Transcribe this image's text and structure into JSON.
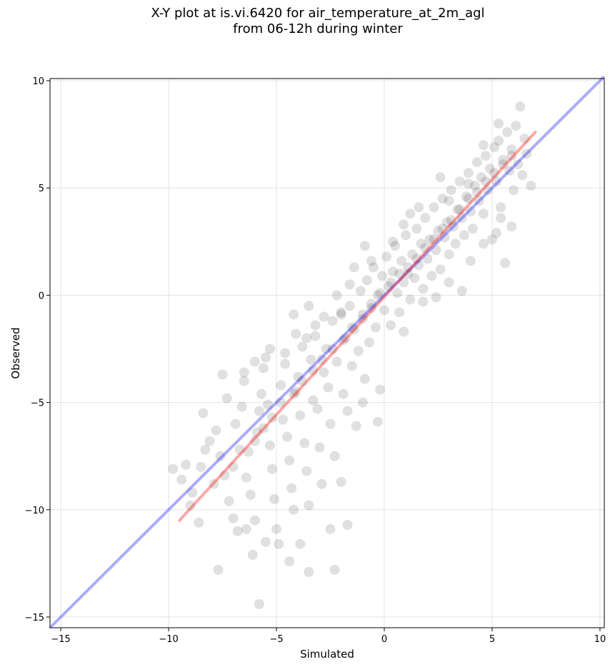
{
  "chart_data": {
    "type": "scatter",
    "title": "X-Y plot at is.vi.6420 for air_temperature_at_2m_agl\nfrom 06-12h during winter",
    "xlabel": "Simulated",
    "ylabel": "Observed",
    "xlim": [
      -15.5,
      10.2
    ],
    "ylim": [
      -15.5,
      10.1
    ],
    "xticks": [
      -15,
      -10,
      -5,
      0,
      5,
      10
    ],
    "yticks": [
      -15,
      -10,
      -5,
      0,
      5,
      10
    ],
    "xtick_labels": [
      "−15",
      "−10",
      "−5",
      "0",
      "5",
      "10"
    ],
    "ytick_labels": [
      "−15",
      "−10",
      "−5",
      "0",
      "5",
      "10"
    ],
    "grid": true,
    "colors": {
      "points": "#000000",
      "identity": "#0000ff",
      "fit": "#ff0000"
    },
    "identity_line": {
      "x": [
        -15.5,
        10.2
      ],
      "y": [
        -15.5,
        10.2
      ]
    },
    "fit_line": {
      "x": [
        -9.5,
        7.0
      ],
      "y": [
        -10.5,
        7.6
      ]
    },
    "points": [
      [
        -9.8,
        -8.1
      ],
      [
        -9.4,
        -8.6
      ],
      [
        -9.2,
        -7.9
      ],
      [
        -8.9,
        -9.2
      ],
      [
        -8.5,
        -8.0
      ],
      [
        -8.3,
        -7.2
      ],
      [
        -8.1,
        -6.8
      ],
      [
        -8.4,
        -5.5
      ],
      [
        -7.8,
        -6.3
      ],
      [
        -7.6,
        -7.5
      ],
      [
        -7.5,
        -3.7
      ],
      [
        -7.3,
        -4.8
      ],
      [
        -7.4,
        -8.4
      ],
      [
        -7.2,
        -9.6
      ],
      [
        -7.0,
        -10.4
      ],
      [
        -6.8,
        -11.0
      ],
      [
        -6.9,
        -6.0
      ],
      [
        -6.6,
        -5.2
      ],
      [
        -6.5,
        -4.0
      ],
      [
        -6.3,
        -7.3
      ],
      [
        -6.4,
        -8.5
      ],
      [
        -6.2,
        -9.3
      ],
      [
        -6.0,
        -10.5
      ],
      [
        -6.1,
        -12.1
      ],
      [
        -5.9,
        -6.4
      ],
      [
        -5.8,
        -5.4
      ],
      [
        -5.7,
        -4.6
      ],
      [
        -5.6,
        -3.4
      ],
      [
        -5.5,
        -2.9
      ],
      [
        -5.4,
        -5.1
      ],
      [
        -5.3,
        -7.0
      ],
      [
        -5.2,
        -8.1
      ],
      [
        -5.1,
        -9.5
      ],
      [
        -5.0,
        -10.9
      ],
      [
        -4.9,
        -11.6
      ],
      [
        -4.8,
        -4.2
      ],
      [
        -4.7,
        -5.8
      ],
      [
        -4.6,
        -3.2
      ],
      [
        -4.5,
        -6.6
      ],
      [
        -4.4,
        -7.7
      ],
      [
        -4.3,
        -9.0
      ],
      [
        -4.2,
        -10.0
      ],
      [
        -4.1,
        -4.5
      ],
      [
        -4.0,
        -3.8
      ],
      [
        -3.9,
        -5.6
      ],
      [
        -3.8,
        -2.4
      ],
      [
        -3.7,
        -6.9
      ],
      [
        -3.6,
        -8.2
      ],
      [
        -3.5,
        -9.8
      ],
      [
        -3.4,
        -3.0
      ],
      [
        -3.3,
        -4.9
      ],
      [
        -3.2,
        -1.9
      ],
      [
        -3.1,
        -5.3
      ],
      [
        -3.0,
        -7.1
      ],
      [
        -2.9,
        -8.8
      ],
      [
        -2.8,
        -3.6
      ],
      [
        -2.7,
        -2.5
      ],
      [
        -2.6,
        -4.3
      ],
      [
        -2.5,
        -6.0
      ],
      [
        -2.4,
        -1.2
      ],
      [
        -2.3,
        -7.5
      ],
      [
        -2.2,
        -3.1
      ],
      [
        -2.0,
        -0.9
      ],
      [
        -1.9,
        -4.6
      ],
      [
        -1.8,
        -2.0
      ],
      [
        -1.7,
        -5.4
      ],
      [
        -1.6,
        -0.5
      ],
      [
        -1.5,
        -3.3
      ],
      [
        -1.4,
        -1.6
      ],
      [
        -1.3,
        -6.1
      ],
      [
        -1.2,
        -2.6
      ],
      [
        -1.1,
        0.2
      ],
      [
        -1.0,
        -1.1
      ],
      [
        -0.9,
        -3.9
      ],
      [
        -0.8,
        0.7
      ],
      [
        -0.7,
        -2.2
      ],
      [
        -0.6,
        -0.4
      ],
      [
        -0.5,
        1.3
      ],
      [
        -0.4,
        -1.5
      ],
      [
        -0.3,
        0.0
      ],
      [
        -0.2,
        -4.4
      ],
      [
        -0.1,
        0.9
      ],
      [
        0.0,
        -0.7
      ],
      [
        0.1,
        1.8
      ],
      [
        0.2,
        0.4
      ],
      [
        0.3,
        -1.4
      ],
      [
        0.4,
        1.1
      ],
      [
        0.5,
        2.3
      ],
      [
        0.6,
        0.1
      ],
      [
        0.7,
        -0.8
      ],
      [
        0.8,
        1.6
      ],
      [
        0.9,
        0.6
      ],
      [
        1.0,
        2.8
      ],
      [
        1.1,
        1.0
      ],
      [
        1.2,
        -0.2
      ],
      [
        1.3,
        1.9
      ],
      [
        1.4,
        0.8
      ],
      [
        1.5,
        3.1
      ],
      [
        1.6,
        1.4
      ],
      [
        1.7,
        2.4
      ],
      [
        1.8,
        0.3
      ],
      [
        1.9,
        3.6
      ],
      [
        2.0,
        1.7
      ],
      [
        2.1,
        2.6
      ],
      [
        2.2,
        0.9
      ],
      [
        2.3,
        4.1
      ],
      [
        2.4,
        2.1
      ],
      [
        2.5,
        3.0
      ],
      [
        2.6,
        1.2
      ],
      [
        2.7,
        4.5
      ],
      [
        2.8,
        2.7
      ],
      [
        2.9,
        3.4
      ],
      [
        3.0,
        1.9
      ],
      [
        3.1,
        4.9
      ],
      [
        3.2,
        3.2
      ],
      [
        3.3,
        2.4
      ],
      [
        3.4,
        4.0
      ],
      [
        3.5,
        5.3
      ],
      [
        3.6,
        3.6
      ],
      [
        3.7,
        2.8
      ],
      [
        3.8,
        4.6
      ],
      [
        3.9,
        5.7
      ],
      [
        4.0,
        3.9
      ],
      [
        4.1,
        3.1
      ],
      [
        4.2,
        5.1
      ],
      [
        4.3,
        6.2
      ],
      [
        4.4,
        4.4
      ],
      [
        4.5,
        5.5
      ],
      [
        4.6,
        3.8
      ],
      [
        4.7,
        6.5
      ],
      [
        4.8,
        4.9
      ],
      [
        4.9,
        5.9
      ],
      [
        5.0,
        2.6
      ],
      [
        5.1,
        6.9
      ],
      [
        5.2,
        5.3
      ],
      [
        5.3,
        7.2
      ],
      [
        5.4,
        4.1
      ],
      [
        5.5,
        6.3
      ],
      [
        5.6,
        1.5
      ],
      [
        5.7,
        7.6
      ],
      [
        5.8,
        5.8
      ],
      [
        5.9,
        6.8
      ],
      [
        6.0,
        4.9
      ],
      [
        6.1,
        7.9
      ],
      [
        6.2,
        6.1
      ],
      [
        6.3,
        8.8
      ],
      [
        6.4,
        5.6
      ],
      [
        6.5,
        7.3
      ],
      [
        6.6,
        6.6
      ],
      [
        6.8,
        5.1
      ],
      [
        5.3,
        8.0
      ],
      [
        5.9,
        3.2
      ],
      [
        -9.0,
        -9.8
      ],
      [
        -8.6,
        -10.6
      ],
      [
        -7.7,
        -12.8
      ],
      [
        -5.8,
        -14.4
      ],
      [
        -3.5,
        -12.9
      ],
      [
        -2.3,
        -12.8
      ],
      [
        -1.7,
        -10.7
      ],
      [
        -2.5,
        -10.9
      ],
      [
        -3.9,
        -11.6
      ],
      [
        -4.4,
        -12.4
      ],
      [
        -5.5,
        -11.5
      ],
      [
        -6.4,
        -10.9
      ],
      [
        -2.0,
        -8.7
      ],
      [
        -1.0,
        -5.0
      ],
      [
        -0.3,
        -5.9
      ],
      [
        0.9,
        -1.7
      ],
      [
        -4.2,
        -0.9
      ],
      [
        -3.2,
        -1.4
      ],
      [
        -3.5,
        -0.5
      ],
      [
        -2.2,
        0.0
      ],
      [
        -1.6,
        0.5
      ],
      [
        -1.4,
        1.3
      ],
      [
        -0.6,
        1.6
      ],
      [
        -0.9,
        2.3
      ],
      [
        0.4,
        2.5
      ],
      [
        0.9,
        3.3
      ],
      [
        1.2,
        3.8
      ],
      [
        1.6,
        4.1
      ],
      [
        2.6,
        5.5
      ],
      [
        3.0,
        4.4
      ],
      [
        3.9,
        5.2
      ],
      [
        4.6,
        7.0
      ],
      [
        1.8,
        -0.3
      ],
      [
        2.4,
        -0.1
      ],
      [
        3.0,
        0.6
      ],
      [
        3.6,
        0.2
      ],
      [
        4.0,
        1.6
      ],
      [
        4.6,
        2.4
      ],
      [
        5.2,
        2.9
      ],
      [
        5.4,
        3.6
      ],
      [
        -7.9,
        -8.8
      ],
      [
        -7.0,
        -8.0
      ],
      [
        -6.7,
        -7.2
      ],
      [
        -6.0,
        -6.8
      ],
      [
        -5.6,
        -6.2
      ],
      [
        -5.2,
        -5.7
      ],
      [
        -4.8,
        -5.0
      ],
      [
        -4.2,
        -4.6
      ],
      [
        -3.8,
        -4.0
      ],
      [
        -3.3,
        -3.5
      ],
      [
        -2.9,
        -3.0
      ],
      [
        -2.4,
        -2.5
      ],
      [
        -1.9,
        -2.1
      ],
      [
        -1.5,
        -1.5
      ],
      [
        -1.0,
        -0.9
      ],
      [
        -0.6,
        -0.6
      ],
      [
        -0.2,
        0.1
      ],
      [
        0.3,
        0.6
      ],
      [
        0.7,
        1.0
      ],
      [
        1.1,
        1.3
      ],
      [
        1.5,
        1.7
      ],
      [
        1.9,
        2.2
      ],
      [
        2.3,
        2.6
      ],
      [
        2.7,
        3.1
      ],
      [
        3.1,
        3.5
      ],
      [
        3.5,
        4.0
      ],
      [
        3.9,
        4.5
      ],
      [
        4.3,
        4.8
      ],
      [
        4.7,
        5.3
      ],
      [
        5.1,
        5.7
      ],
      [
        5.5,
        6.1
      ],
      [
        5.9,
        6.5
      ],
      [
        -6.5,
        -3.6
      ],
      [
        -6.0,
        -3.1
      ],
      [
        -5.3,
        -2.5
      ],
      [
        -4.6,
        -2.7
      ],
      [
        -4.1,
        -1.8
      ],
      [
        -3.6,
        -2.0
      ],
      [
        -2.8,
        -1.0
      ],
      [
        -2.0,
        -0.8
      ]
    ]
  }
}
